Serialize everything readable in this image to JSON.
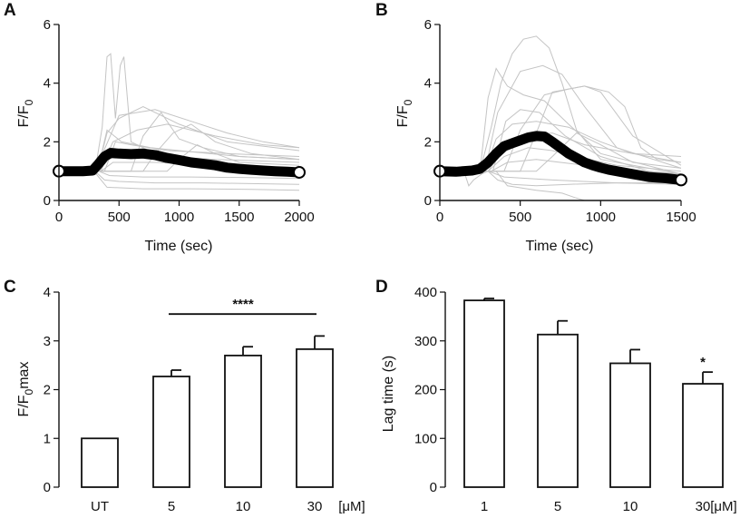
{
  "colors": {
    "trace": "#c4c4c4",
    "mean": "#000000",
    "axis": "#111111"
  },
  "chart_data": [
    {
      "panel": "A",
      "type": "line",
      "xlabel": "Time (sec)",
      "ylabel": {
        "main": "F/F",
        "sub": "0"
      },
      "xlim": [
        0,
        2000
      ],
      "ylim": [
        0,
        6
      ],
      "xticks": [
        "0",
        "500",
        "1000",
        "1500",
        "2000"
      ],
      "yticks": [
        "0",
        "2",
        "4",
        "6"
      ],
      "mean_series": {
        "name": "mean",
        "x": [
          0,
          100,
          200,
          280,
          330,
          380,
          430,
          500,
          600,
          700,
          800,
          900,
          1000,
          1100,
          1200,
          1300,
          1400,
          1500,
          1600,
          1700,
          1800,
          1900,
          2000
        ],
        "y": [
          1.0,
          1.0,
          1.0,
          1.02,
          1.25,
          1.5,
          1.62,
          1.6,
          1.58,
          1.6,
          1.55,
          1.45,
          1.38,
          1.3,
          1.25,
          1.2,
          1.12,
          1.08,
          1.05,
          1.02,
          1.0,
          0.98,
          0.96
        ]
      },
      "traces": [
        {
          "x": [
            0,
            300,
            360,
            400,
            430,
            470,
            510,
            540,
            600,
            800,
            1200,
            2000
          ],
          "y": [
            1.0,
            1.0,
            2.5,
            4.9,
            5.0,
            2.8,
            4.6,
            4.9,
            2.0,
            1.6,
            1.2,
            1.0
          ]
        },
        {
          "x": [
            0,
            320,
            400,
            500,
            700,
            1000,
            1400,
            2000
          ],
          "y": [
            1.0,
            1.0,
            2.3,
            2.8,
            3.2,
            2.6,
            2.0,
            1.7
          ]
        },
        {
          "x": [
            0,
            340,
            450,
            650,
            900,
            1300,
            1700,
            2000
          ],
          "y": [
            1.0,
            1.0,
            2.0,
            2.4,
            2.6,
            2.2,
            1.9,
            1.8
          ]
        },
        {
          "x": [
            0,
            300,
            500,
            800,
            1100,
            1400,
            1700,
            2000
          ],
          "y": [
            1.0,
            1.0,
            2.9,
            3.1,
            2.7,
            2.3,
            2.0,
            1.8
          ]
        },
        {
          "x": [
            0,
            600,
            700,
            850,
            1000,
            1200,
            1500,
            2000
          ],
          "y": [
            1.0,
            1.0,
            2.2,
            3.0,
            2.1,
            1.8,
            1.5,
            1.4
          ]
        },
        {
          "x": [
            0,
            350,
            420,
            600,
            900,
            1300,
            2000
          ],
          "y": [
            1.0,
            1.0,
            1.8,
            1.6,
            1.5,
            1.4,
            1.3
          ]
        },
        {
          "x": [
            0,
            300,
            380,
            500,
            800,
            1200,
            2000
          ],
          "y": [
            1.0,
            1.0,
            0.7,
            0.65,
            0.6,
            0.6,
            0.55
          ]
        },
        {
          "x": [
            0,
            300,
            400,
            700,
            1100,
            1600,
            2000
          ],
          "y": [
            1.0,
            0.95,
            0.45,
            0.4,
            0.4,
            0.38,
            0.35
          ]
        },
        {
          "x": [
            0,
            350,
            450,
            800,
            1300,
            2000
          ],
          "y": [
            1.0,
            1.0,
            1.3,
            1.3,
            1.2,
            1.1
          ]
        },
        {
          "x": [
            0,
            700,
            800,
            950,
            1100,
            1300,
            1600,
            2000
          ],
          "y": [
            1.0,
            1.0,
            1.6,
            2.3,
            2.6,
            2.0,
            1.6,
            1.4
          ]
        },
        {
          "x": [
            0,
            380,
            470,
            600,
            900,
            1400,
            2000
          ],
          "y": [
            1.0,
            1.0,
            2.0,
            1.9,
            1.7,
            1.6,
            1.5
          ]
        },
        {
          "x": [
            0,
            330,
            420,
            700,
            1100,
            1600,
            2000
          ],
          "y": [
            1.0,
            1.0,
            0.85,
            0.8,
            0.8,
            0.78,
            0.75
          ]
        },
        {
          "x": [
            0,
            900,
            1000,
            1150,
            1300,
            1500,
            2000
          ],
          "y": [
            1.0,
            1.0,
            1.4,
            1.9,
            1.6,
            1.3,
            1.2
          ]
        },
        {
          "x": [
            0,
            320,
            400,
            520,
            760,
            1000,
            1500,
            2000
          ],
          "y": [
            1.0,
            1.0,
            2.4,
            2.0,
            1.8,
            1.7,
            1.5,
            1.4
          ]
        }
      ]
    },
    {
      "panel": "B",
      "type": "line",
      "xlabel": "Time (sec)",
      "ylabel": {
        "main": "F/F",
        "sub": "0"
      },
      "xlim": [
        0,
        1500
      ],
      "ylim": [
        0,
        6
      ],
      "xticks": [
        "0",
        "500",
        "1000",
        "1500"
      ],
      "yticks": [
        "0",
        "2",
        "4",
        "6"
      ],
      "mean_series": {
        "name": "mean",
        "x": [
          0,
          100,
          200,
          250,
          300,
          350,
          400,
          450,
          500,
          550,
          600,
          650,
          700,
          750,
          800,
          850,
          900,
          950,
          1000,
          1050,
          1100,
          1150,
          1200,
          1250,
          1300,
          1350,
          1400,
          1450,
          1500
        ],
        "y": [
          1.0,
          0.98,
          1.02,
          1.08,
          1.3,
          1.6,
          1.85,
          1.95,
          2.05,
          2.15,
          2.2,
          2.18,
          2.0,
          1.8,
          1.6,
          1.45,
          1.3,
          1.2,
          1.12,
          1.05,
          1.0,
          0.95,
          0.9,
          0.85,
          0.8,
          0.78,
          0.76,
          0.73,
          0.7
        ]
      },
      "traces": [
        {
          "x": [
            0,
            250,
            320,
            380,
            450,
            520,
            600,
            680,
            760,
            850,
            1000,
            1500
          ],
          "y": [
            1.0,
            1.0,
            2.5,
            4.0,
            5.0,
            5.5,
            5.6,
            5.2,
            4.0,
            2.4,
            1.4,
            0.9
          ]
        },
        {
          "x": [
            0,
            250,
            300,
            350,
            420,
            520,
            650,
            800,
            1000,
            1500
          ],
          "y": [
            1.0,
            1.0,
            3.5,
            4.5,
            3.9,
            3.6,
            3.4,
            2.6,
            1.6,
            0.9
          ]
        },
        {
          "x": [
            0,
            400,
            500,
            650,
            800,
            900,
            1000,
            1200,
            1500
          ],
          "y": [
            1.0,
            1.0,
            2.4,
            3.6,
            3.8,
            3.9,
            3.7,
            2.2,
            1.2
          ]
        },
        {
          "x": [
            0,
            500,
            600,
            700,
            900,
            1050,
            1150,
            1250,
            1350,
            1500
          ],
          "y": [
            1.0,
            1.0,
            2.3,
            3.7,
            3.9,
            3.7,
            3.2,
            1.8,
            1.4,
            1.3
          ]
        },
        {
          "x": [
            0,
            280,
            350,
            450,
            600,
            800,
            1000,
            1200,
            1500
          ],
          "y": [
            1.0,
            1.0,
            2.1,
            2.6,
            2.7,
            2.5,
            2.0,
            1.6,
            1.3
          ]
        },
        {
          "x": [
            0,
            300,
            380,
            500,
            700,
            900,
            1200,
            1500
          ],
          "y": [
            1.0,
            1.0,
            1.7,
            2.2,
            2.3,
            1.9,
            1.6,
            1.5
          ]
        },
        {
          "x": [
            0,
            300,
            360,
            450,
            600,
            800,
            1100,
            1500
          ],
          "y": [
            1.0,
            1.0,
            0.7,
            0.55,
            0.5,
            0.55,
            0.6,
            0.6
          ]
        },
        {
          "x": [
            0,
            320,
            420,
            600,
            750,
            900,
            1200,
            1500
          ],
          "y": [
            1.0,
            1.0,
            1.3,
            1.4,
            1.3,
            1.2,
            1.0,
            0.9
          ]
        },
        {
          "x": [
            0,
            350,
            420,
            600,
            760,
            840,
            900
          ],
          "y": [
            1.0,
            1.0,
            0.5,
            0.35,
            0.25,
            0.1,
            0.0
          ]
        },
        {
          "x": [
            0,
            280,
            360,
            500,
            640,
            760,
            900,
            1100,
            1500
          ],
          "y": [
            1.0,
            1.0,
            3.0,
            4.4,
            4.6,
            4.3,
            3.2,
            1.8,
            1.1
          ]
        },
        {
          "x": [
            0,
            300,
            400,
            550,
            700,
            850,
            1100,
            1500
          ],
          "y": [
            1.0,
            1.0,
            1.5,
            1.8,
            1.7,
            1.5,
            1.2,
            1.0
          ]
        },
        {
          "x": [
            0,
            600,
            700,
            850,
            1000,
            1200,
            1500
          ],
          "y": [
            1.0,
            1.0,
            1.5,
            2.3,
            1.9,
            1.3,
            1.1
          ]
        },
        {
          "x": [
            0,
            150,
            180,
            210,
            260,
            300,
            400,
            700,
            1100,
            1500
          ],
          "y": [
            1.0,
            1.0,
            0.5,
            0.7,
            0.9,
            1.0,
            0.8,
            0.7,
            0.6,
            0.55
          ]
        },
        {
          "x": [
            0,
            330,
            410,
            500,
            620,
            780,
            1000,
            1300,
            1500
          ],
          "y": [
            1.0,
            1.0,
            2.7,
            3.1,
            3.0,
            2.2,
            1.5,
            1.0,
            0.9
          ]
        }
      ]
    },
    {
      "panel": "C",
      "type": "bar",
      "ylabel": {
        "main": "F/F",
        "sub": "0",
        "suffix": "max"
      },
      "ylim": [
        0,
        4
      ],
      "yticks": [
        "0",
        "1",
        "2",
        "3",
        "4"
      ],
      "categories": [
        "UT",
        "5",
        "10",
        "30"
      ],
      "unit": "[μM]",
      "values": [
        1.0,
        2.27,
        2.7,
        2.83
      ],
      "errors": [
        0,
        0.13,
        0.18,
        0.27
      ],
      "significance": {
        "label": "****",
        "from": "5",
        "to": "30",
        "y": 3.55
      }
    },
    {
      "panel": "D",
      "type": "bar",
      "ylabel": "Lag time (s)",
      "ylim": [
        0,
        400
      ],
      "yticks": [
        "0",
        "100",
        "200",
        "300",
        "400"
      ],
      "categories": [
        "1",
        "5",
        "10",
        "30"
      ],
      "unit": "[μM]",
      "values": [
        383,
        313,
        254,
        212
      ],
      "errors": [
        4,
        28,
        28,
        24
      ],
      "significance": {
        "label": "*",
        "bar": "30"
      }
    }
  ]
}
